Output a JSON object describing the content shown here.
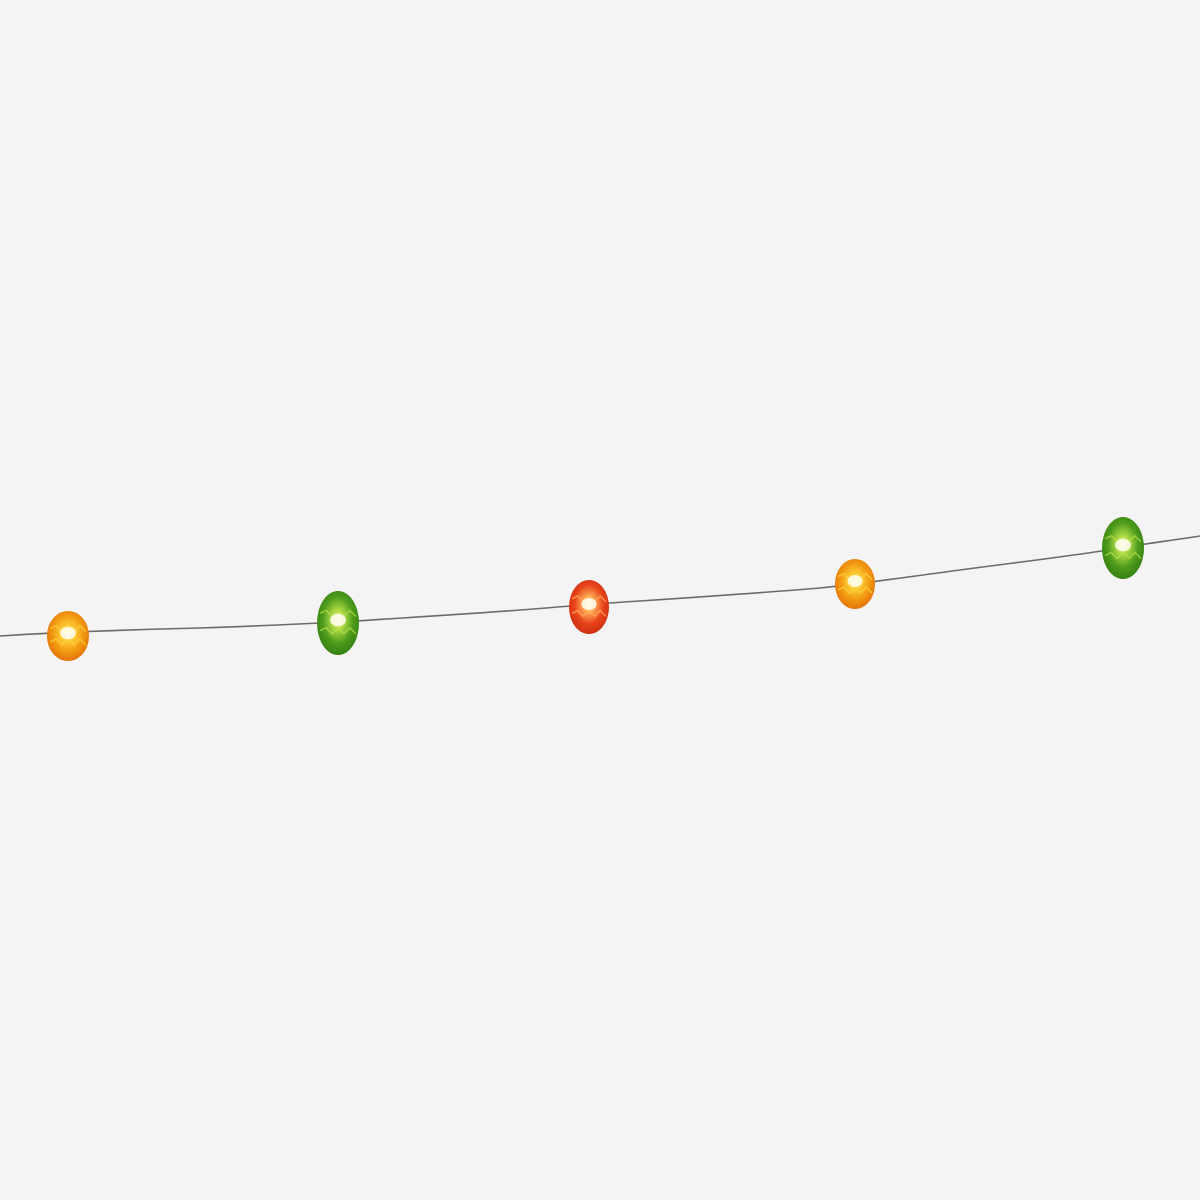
{
  "background_color": "#f4f4f4",
  "wire_color": "#6e6a66",
  "bulbs": [
    {
      "name": "egg-light-1",
      "color": "orange",
      "base": "#f29a12",
      "light": "#ffd23a",
      "dark": "#e06a06"
    },
    {
      "name": "egg-light-2",
      "color": "green",
      "base": "#4e9c1c",
      "light": "#b7e04a",
      "dark": "#2f7a10"
    },
    {
      "name": "egg-light-3",
      "color": "red",
      "base": "#e8441a",
      "light": "#ffb15a",
      "dark": "#c62a10"
    },
    {
      "name": "egg-light-4",
      "color": "orange",
      "base": "#f29a12",
      "light": "#ffd23a",
      "dark": "#e06a06"
    },
    {
      "name": "egg-light-5",
      "color": "green",
      "base": "#4e9c1c",
      "light": "#b7e04a",
      "dark": "#2f7a10"
    }
  ]
}
